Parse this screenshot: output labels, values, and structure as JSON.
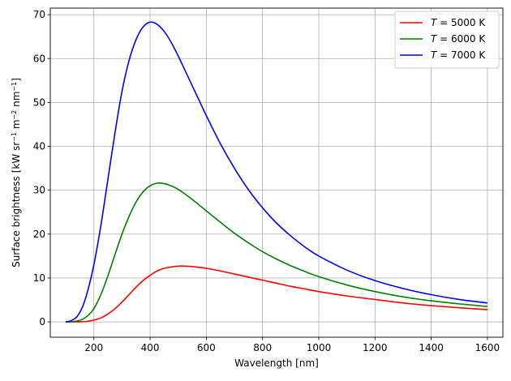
{
  "chart_data": {
    "type": "line",
    "xlabel": "Wavelength [nm]",
    "ylabel_parts": [
      "Surface brightness [kW sr",
      "−1",
      " m",
      "−2",
      " nm",
      "−1",
      "]"
    ],
    "xlim": [
      45,
      1655
    ],
    "ylim": [
      -3.5,
      71.5
    ],
    "xticks": [
      200,
      400,
      600,
      800,
      1000,
      1200,
      1400,
      1600
    ],
    "yticks": [
      0,
      10,
      20,
      30,
      40,
      50,
      60,
      70
    ],
    "grid": true,
    "legend_position": "top-right",
    "x": [
      100,
      120,
      140,
      160,
      180,
      200,
      225,
      250,
      275,
      300,
      325,
      350,
      375,
      400,
      425,
      450,
      475,
      500,
      525,
      550,
      575,
      600,
      650,
      700,
      750,
      800,
      850,
      900,
      950,
      1000,
      1100,
      1200,
      1300,
      1400,
      1500,
      1600
    ],
    "series": [
      {
        "name": "T = 5000 K",
        "symbol": "T",
        "value_text": " = 5000 K",
        "color": "#ff0000",
        "values": [
          0.0,
          0.0,
          0.0,
          0.05,
          0.15,
          0.4,
          0.9,
          1.8,
          3.0,
          4.5,
          6.2,
          7.9,
          9.4,
          10.6,
          11.6,
          12.2,
          12.5,
          12.7,
          12.7,
          12.6,
          12.4,
          12.2,
          11.6,
          10.9,
          10.2,
          9.5,
          8.8,
          8.1,
          7.5,
          6.9,
          5.9,
          5.1,
          4.3,
          3.7,
          3.2,
          2.8
        ]
      },
      {
        "name": "T = 6000 K",
        "symbol": "T",
        "value_text": " = 6000 K",
        "color": "#008000",
        "values": [
          0.0,
          0.05,
          0.2,
          0.6,
          1.5,
          3.0,
          6.2,
          10.5,
          15.3,
          20.0,
          24.0,
          27.3,
          29.6,
          31.0,
          31.6,
          31.5,
          31.0,
          30.2,
          29.1,
          27.9,
          26.6,
          25.3,
          22.7,
          20.2,
          18.0,
          16.0,
          14.3,
          12.8,
          11.5,
          10.3,
          8.4,
          6.9,
          5.7,
          4.8,
          4.1,
          3.5
        ]
      },
      {
        "name": "T = 7000 K",
        "symbol": "T",
        "value_text": " = 7000 K",
        "color": "#0000ff",
        "values": [
          0.0,
          0.3,
          1.2,
          3.5,
          7.5,
          13.0,
          22.0,
          32.5,
          43.0,
          52.5,
          59.5,
          64.3,
          67.2,
          68.3,
          67.8,
          66.2,
          63.7,
          60.6,
          57.2,
          53.8,
          50.4,
          47.0,
          40.6,
          35.0,
          30.1,
          26.0,
          22.5,
          19.6,
          17.1,
          15.0,
          11.8,
          9.4,
          7.6,
          6.2,
          5.1,
          4.3
        ]
      }
    ]
  }
}
